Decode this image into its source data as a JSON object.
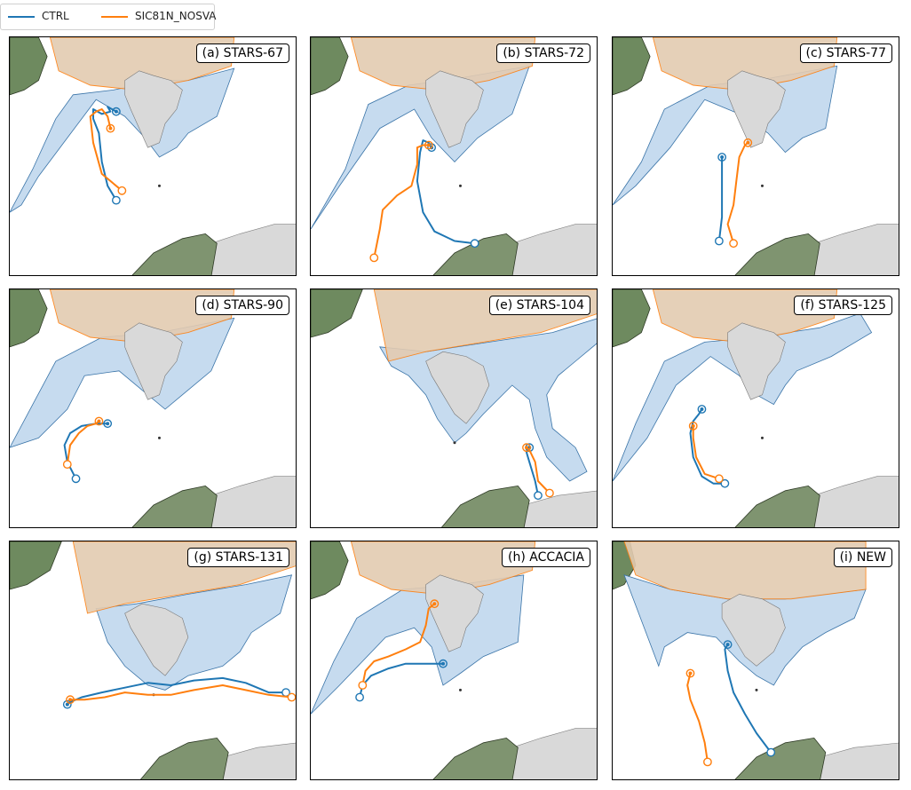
{
  "legend": [
    {
      "label": "CTRL",
      "color": "#1f77b4"
    },
    {
      "label": "SIC81N_NOSVA",
      "color": "#ff7f0e"
    }
  ],
  "colors": {
    "sea_ice": "#c6dbef",
    "polar_cap": "#e3cbb1",
    "land": "#d9d9d9",
    "ctrl": "#1f77b4",
    "nosva": "#ff7f0e"
  },
  "panels": [
    {
      "label": "(a) STARS-67",
      "domain": "d1",
      "iceVariant": 0,
      "ctrl": [
        [
          0.37,
          0.68
        ],
        [
          0.34,
          0.62
        ],
        [
          0.32,
          0.52
        ],
        [
          0.31,
          0.4
        ],
        [
          0.29,
          0.34
        ],
        [
          0.29,
          0.3
        ],
        [
          0.32,
          0.32
        ],
        [
          0.35,
          0.31
        ],
        [
          0.34,
          0.29
        ],
        [
          0.37,
          0.31
        ]
      ],
      "nosva": [
        [
          0.39,
          0.64
        ],
        [
          0.32,
          0.57
        ],
        [
          0.29,
          0.44
        ],
        [
          0.28,
          0.33
        ],
        [
          0.3,
          0.31
        ],
        [
          0.32,
          0.3
        ],
        [
          0.34,
          0.33
        ],
        [
          0.35,
          0.38
        ]
      ]
    },
    {
      "label": "(b) STARS-72",
      "domain": "d1",
      "iceVariant": 1,
      "ctrl": [
        [
          0.57,
          0.86
        ],
        [
          0.5,
          0.85
        ],
        [
          0.43,
          0.81
        ],
        [
          0.39,
          0.73
        ],
        [
          0.37,
          0.6
        ],
        [
          0.38,
          0.48
        ],
        [
          0.39,
          0.43
        ],
        [
          0.41,
          0.44
        ],
        [
          0.42,
          0.46
        ]
      ],
      "nosva": [
        [
          0.22,
          0.92
        ],
        [
          0.24,
          0.8
        ],
        [
          0.25,
          0.72
        ],
        [
          0.3,
          0.66
        ],
        [
          0.35,
          0.62
        ],
        [
          0.37,
          0.53
        ],
        [
          0.37,
          0.46
        ],
        [
          0.39,
          0.45
        ],
        [
          0.41,
          0.45
        ]
      ]
    },
    {
      "label": "(c) STARS-77",
      "domain": "d1",
      "iceVariant": 2,
      "ctrl": [
        [
          0.37,
          0.85
        ],
        [
          0.38,
          0.75
        ],
        [
          0.38,
          0.68
        ],
        [
          0.38,
          0.6
        ],
        [
          0.38,
          0.53
        ],
        [
          0.38,
          0.5
        ]
      ],
      "nosva": [
        [
          0.42,
          0.86
        ],
        [
          0.4,
          0.78
        ],
        [
          0.42,
          0.7
        ],
        [
          0.43,
          0.6
        ],
        [
          0.44,
          0.5
        ],
        [
          0.46,
          0.45
        ],
        [
          0.47,
          0.44
        ]
      ]
    },
    {
      "label": "(d) STARS-90",
      "domain": "d1",
      "iceVariant": 3,
      "ctrl": [
        [
          0.23,
          0.79
        ],
        [
          0.2,
          0.72
        ],
        [
          0.19,
          0.65
        ],
        [
          0.21,
          0.6
        ],
        [
          0.25,
          0.57
        ],
        [
          0.3,
          0.56
        ],
        [
          0.34,
          0.56
        ]
      ],
      "nosva": [
        [
          0.2,
          0.73
        ],
        [
          0.21,
          0.65
        ],
        [
          0.24,
          0.6
        ],
        [
          0.27,
          0.57
        ],
        [
          0.3,
          0.56
        ],
        [
          0.31,
          0.55
        ]
      ]
    },
    {
      "label": "(e) STARS-104",
      "domain": "d2",
      "iceVariant": 4,
      "ctrl": [
        [
          0.79,
          0.86
        ],
        [
          0.78,
          0.8
        ],
        [
          0.76,
          0.72
        ],
        [
          0.75,
          0.68
        ],
        [
          0.76,
          0.66
        ]
      ],
      "nosva": [
        [
          0.83,
          0.85
        ],
        [
          0.79,
          0.8
        ],
        [
          0.78,
          0.72
        ],
        [
          0.76,
          0.67
        ],
        [
          0.75,
          0.66
        ]
      ]
    },
    {
      "label": "(f) STARS-125",
      "domain": "d1",
      "iceVariant": 5,
      "ctrl": [
        [
          0.39,
          0.81
        ],
        [
          0.35,
          0.81
        ],
        [
          0.31,
          0.78
        ],
        [
          0.28,
          0.7
        ],
        [
          0.27,
          0.6
        ],
        [
          0.28,
          0.55
        ],
        [
          0.3,
          0.52
        ],
        [
          0.31,
          0.5
        ]
      ],
      "nosva": [
        [
          0.37,
          0.79
        ],
        [
          0.32,
          0.77
        ],
        [
          0.29,
          0.7
        ],
        [
          0.28,
          0.62
        ],
        [
          0.28,
          0.57
        ]
      ]
    },
    {
      "label": "(g) STARS-131",
      "domain": "d2",
      "iceVariant": 6,
      "ctrl": [
        [
          0.96,
          0.63
        ],
        [
          0.9,
          0.63
        ],
        [
          0.82,
          0.59
        ],
        [
          0.74,
          0.57
        ],
        [
          0.64,
          0.58
        ],
        [
          0.56,
          0.6
        ],
        [
          0.48,
          0.59
        ],
        [
          0.4,
          0.61
        ],
        [
          0.32,
          0.63
        ],
        [
          0.25,
          0.65
        ],
        [
          0.21,
          0.67
        ],
        [
          0.2,
          0.68
        ]
      ],
      "nosva": [
        [
          0.98,
          0.65
        ],
        [
          0.9,
          0.64
        ],
        [
          0.82,
          0.62
        ],
        [
          0.74,
          0.6
        ],
        [
          0.64,
          0.62
        ],
        [
          0.56,
          0.64
        ],
        [
          0.48,
          0.64
        ],
        [
          0.4,
          0.63
        ],
        [
          0.33,
          0.65
        ],
        [
          0.26,
          0.66
        ],
        [
          0.21,
          0.66
        ]
      ]
    },
    {
      "label": "(h) ACCACIA",
      "domain": "d1",
      "iceVariant": 7,
      "ctrl": [
        [
          0.17,
          0.65
        ],
        [
          0.18,
          0.6
        ],
        [
          0.21,
          0.56
        ],
        [
          0.27,
          0.53
        ],
        [
          0.33,
          0.51
        ],
        [
          0.39,
          0.51
        ],
        [
          0.42,
          0.51
        ],
        [
          0.45,
          0.51
        ],
        [
          0.46,
          0.51
        ]
      ],
      "nosva": [
        [
          0.18,
          0.6
        ],
        [
          0.19,
          0.54
        ],
        [
          0.22,
          0.5
        ],
        [
          0.27,
          0.48
        ],
        [
          0.33,
          0.45
        ],
        [
          0.38,
          0.42
        ],
        [
          0.4,
          0.35
        ],
        [
          0.41,
          0.28
        ],
        [
          0.43,
          0.26
        ]
      ]
    },
    {
      "label": "(i) NEW",
      "domain": "d3",
      "iceVariant": 8,
      "ctrl": [
        [
          0.55,
          0.88
        ],
        [
          0.5,
          0.8
        ],
        [
          0.46,
          0.72
        ],
        [
          0.42,
          0.63
        ],
        [
          0.4,
          0.54
        ],
        [
          0.39,
          0.45
        ],
        [
          0.4,
          0.43
        ]
      ],
      "nosva": [
        [
          0.33,
          0.92
        ],
        [
          0.32,
          0.84
        ],
        [
          0.3,
          0.75
        ],
        [
          0.27,
          0.66
        ],
        [
          0.26,
          0.6
        ],
        [
          0.27,
          0.55
        ]
      ]
    }
  ]
}
